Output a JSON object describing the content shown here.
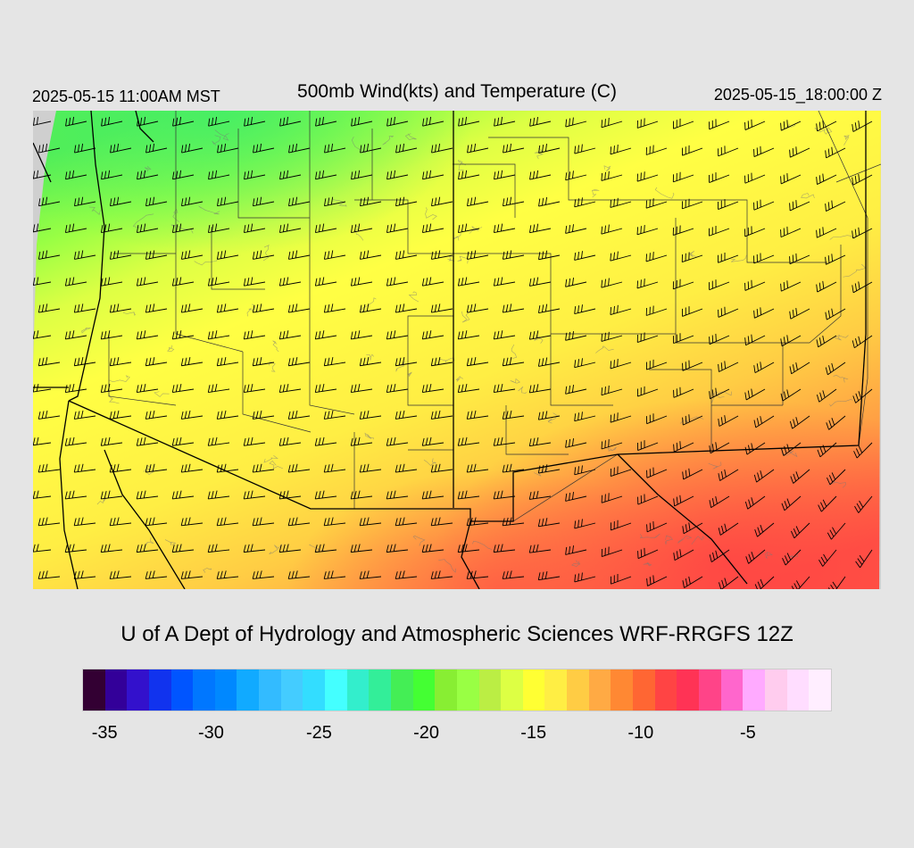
{
  "header": {
    "local_time": "2025-05-15 11:00AM MST",
    "title": "500mb Wind(kts) and Temperature (C)",
    "valid_time": "2025-05-15_18:00:00 Z"
  },
  "credit": "U of A Dept of Hydrology and Atmospheric Sciences WRF-RRGFS 12Z",
  "colorbar": {
    "colors": [
      "#330033",
      "#330099",
      "#3311cc",
      "#1133ee",
      "#0055ff",
      "#0077ff",
      "#0088ff",
      "#11aaff",
      "#33bbff",
      "#44ccff",
      "#33ddff",
      "#44ffff",
      "#33eecc",
      "#33ee99",
      "#44ee55",
      "#44ff33",
      "#88ee33",
      "#99ff44",
      "#bbee44",
      "#ddff44",
      "#ffff33",
      "#ffee44",
      "#ffcc44",
      "#ffaa44",
      "#ff8833",
      "#ff6633",
      "#ff4444",
      "#ff3355",
      "#ff4488",
      "#ff66cc",
      "#ffaaff",
      "#ffccee",
      "#ffddff",
      "#ffeeff"
    ],
    "tick_labels": [
      "-35",
      "-30",
      "-25",
      "-20",
      "-15",
      "-10",
      "-5"
    ],
    "tick_fractions": [
      0.03,
      0.172,
      0.316,
      0.459,
      0.602,
      0.745,
      0.888
    ]
  },
  "map": {
    "temperature_palette": {
      "cold": "#55ee55",
      "cool": "#ccff44",
      "mid": "#ffff44",
      "warm": "#ffcc44",
      "hot": "#ff8844",
      "hottest": "#ff5544"
    }
  }
}
